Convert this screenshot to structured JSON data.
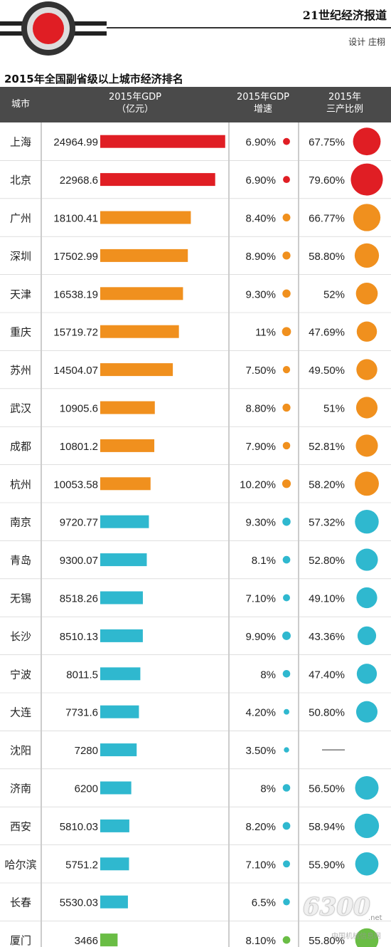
{
  "header": {
    "publication": "21世纪经济报道",
    "designer": "设计 庄栩"
  },
  "chart_data": {
    "type": "table",
    "title": "2015年全国副省级以上城市经济排名",
    "columns": {
      "city": "城市",
      "gdp_line1": "2015年GDP",
      "gdp_line2": "（亿元）",
      "growth_line1": "2015年GDP",
      "growth_line2": "增速",
      "tertiary_line1": "2015年",
      "tertiary_line2": "三产比例"
    },
    "colors": {
      "red": "#e01e24",
      "orange": "#f0901e",
      "cyan": "#2fb8cf",
      "green": "#6abd45"
    },
    "gdp_range": [
      0,
      25000
    ],
    "rows": [
      {
        "city": "上海",
        "gdp": 24964.99,
        "gdp_text": "24964.99",
        "growth": 6.9,
        "growth_text": "6.90%",
        "tertiary": 67.75,
        "tertiary_text": "67.75%",
        "color": "red"
      },
      {
        "city": "北京",
        "gdp": 22968.6,
        "gdp_text": "22968.6",
        "growth": 6.9,
        "growth_text": "6.90%",
        "tertiary": 79.6,
        "tertiary_text": "79.60%",
        "color": "red"
      },
      {
        "city": "广州",
        "gdp": 18100.41,
        "gdp_text": "18100.41",
        "growth": 8.4,
        "growth_text": "8.40%",
        "tertiary": 66.77,
        "tertiary_text": "66.77%",
        "color": "orange"
      },
      {
        "city": "深圳",
        "gdp": 17502.99,
        "gdp_text": "17502.99",
        "growth": 8.9,
        "growth_text": "8.90%",
        "tertiary": 58.8,
        "tertiary_text": "58.80%",
        "color": "orange"
      },
      {
        "city": "天津",
        "gdp": 16538.19,
        "gdp_text": "16538.19",
        "growth": 9.3,
        "growth_text": "9.30%",
        "tertiary": 52,
        "tertiary_text": "52%",
        "color": "orange"
      },
      {
        "city": "重庆",
        "gdp": 15719.72,
        "gdp_text": "15719.72",
        "growth": 11,
        "growth_text": "11%",
        "tertiary": 47.69,
        "tertiary_text": "47.69%",
        "color": "orange"
      },
      {
        "city": "苏州",
        "gdp": 14504.07,
        "gdp_text": "14504.07",
        "growth": 7.5,
        "growth_text": "7.50%",
        "tertiary": 49.5,
        "tertiary_text": "49.50%",
        "color": "orange"
      },
      {
        "city": "武汉",
        "gdp": 10905.6,
        "gdp_text": "10905.6",
        "growth": 8.8,
        "growth_text": "8.80%",
        "tertiary": 51,
        "tertiary_text": "51%",
        "color": "orange"
      },
      {
        "city": "成都",
        "gdp": 10801.2,
        "gdp_text": "10801.2",
        "growth": 7.9,
        "growth_text": "7.90%",
        "tertiary": 52.81,
        "tertiary_text": "52.81%",
        "color": "orange"
      },
      {
        "city": "杭州",
        "gdp": 10053.58,
        "gdp_text": "10053.58",
        "growth": 10.2,
        "growth_text": "10.20%",
        "tertiary": 58.2,
        "tertiary_text": "58.20%",
        "color": "orange"
      },
      {
        "city": "南京",
        "gdp": 9720.77,
        "gdp_text": "9720.77",
        "growth": 9.3,
        "growth_text": "9.30%",
        "tertiary": 57.32,
        "tertiary_text": "57.32%",
        "color": "cyan"
      },
      {
        "city": "青岛",
        "gdp": 9300.07,
        "gdp_text": "9300.07",
        "growth": 8.1,
        "growth_text": "8.1%",
        "tertiary": 52.8,
        "tertiary_text": "52.80%",
        "color": "cyan"
      },
      {
        "city": "无锡",
        "gdp": 8518.26,
        "gdp_text": "8518.26",
        "growth": 7.1,
        "growth_text": "7.10%",
        "tertiary": 49.1,
        "tertiary_text": "49.10%",
        "color": "cyan"
      },
      {
        "city": "长沙",
        "gdp": 8510.13,
        "gdp_text": "8510.13",
        "growth": 9.9,
        "growth_text": "9.90%",
        "tertiary": 43.36,
        "tertiary_text": "43.36%",
        "color": "cyan"
      },
      {
        "city": "宁波",
        "gdp": 8011.5,
        "gdp_text": "8011.5",
        "growth": 8,
        "growth_text": "8%",
        "tertiary": 47.4,
        "tertiary_text": "47.40%",
        "color": "cyan"
      },
      {
        "city": "大连",
        "gdp": 7731.6,
        "gdp_text": "7731.6",
        "growth": 4.2,
        "growth_text": "4.20%",
        "tertiary": 50.8,
        "tertiary_text": "50.80%",
        "color": "cyan"
      },
      {
        "city": "沈阳",
        "gdp": 7280,
        "gdp_text": "7280",
        "growth": 3.5,
        "growth_text": "3.50%",
        "tertiary": null,
        "tertiary_text": "——",
        "color": "cyan"
      },
      {
        "city": "济南",
        "gdp": 6200,
        "gdp_text": "6200",
        "growth": 8,
        "growth_text": "8%",
        "tertiary": 56.5,
        "tertiary_text": "56.50%",
        "color": "cyan"
      },
      {
        "city": "西安",
        "gdp": 5810.03,
        "gdp_text": "5810.03",
        "growth": 8.2,
        "growth_text": "8.20%",
        "tertiary": 58.94,
        "tertiary_text": "58.94%",
        "color": "cyan"
      },
      {
        "city": "哈尔滨",
        "gdp": 5751.2,
        "gdp_text": "5751.2",
        "growth": 7.1,
        "growth_text": "7.10%",
        "tertiary": 55.9,
        "tertiary_text": "55.90%",
        "color": "cyan"
      },
      {
        "city": "长春",
        "gdp": 5530.03,
        "gdp_text": "5530.03",
        "growth": 6.5,
        "growth_text": "6.5%",
        "tertiary": null,
        "tertiary_text": "",
        "color": "cyan"
      },
      {
        "city": "厦门",
        "gdp": 3466,
        "gdp_text": "3466",
        "growth": 8.1,
        "growth_text": "8.10%",
        "tertiary": 55.8,
        "tertiary_text": "55.80%",
        "color": "green"
      }
    ]
  },
  "watermark": {
    "number": "6300",
    "tld": ".net",
    "subtitle": "中国机械信息网"
  }
}
